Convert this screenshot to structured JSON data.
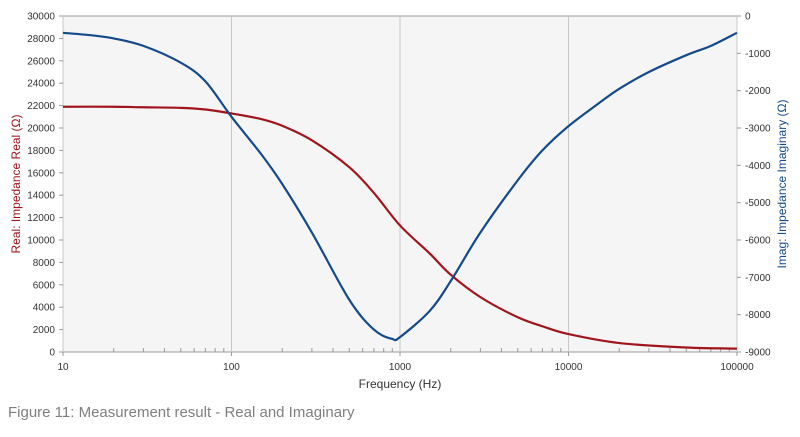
{
  "caption": "Figure 11: Measurement result - Real and Imaginary",
  "chart_data": {
    "type": "line",
    "xlabel": "Frequency (Hz)",
    "xscale": "log",
    "xlim": [
      10,
      100000
    ],
    "x_ticks": [
      "10",
      "100",
      "1000",
      "10000",
      "100000"
    ],
    "y_left": {
      "label": "Real: Impedance Real (Ω)",
      "lim": [
        0,
        30000
      ],
      "ticks": [
        "0",
        "2000",
        "4000",
        "6000",
        "8000",
        "10000",
        "12000",
        "14000",
        "16000",
        "18000",
        "20000",
        "22000",
        "24000",
        "26000",
        "28000",
        "30000"
      ],
      "color": "#a0151c"
    },
    "y_right": {
      "label": "Imag: Impedance Imaginary (Ω)",
      "lim": [
        -9000,
        0
      ],
      "ticks": [
        "-9000",
        "-8000",
        "-7000",
        "-6000",
        "-5000",
        "-4000",
        "-3000",
        "-2000",
        "-1000",
        "0"
      ],
      "color": "#154a8a"
    },
    "grid": true,
    "series": [
      {
        "name": "Real",
        "axis": "left",
        "color": "#a0151c",
        "x": [
          10,
          20,
          30,
          50,
          70,
          100,
          150,
          200,
          300,
          500,
          700,
          1000,
          1500,
          2000,
          3000,
          5000,
          7000,
          10000,
          20000,
          50000,
          100000
        ],
        "y": [
          21900,
          21900,
          21850,
          21800,
          21650,
          21300,
          20800,
          20200,
          18900,
          16500,
          14200,
          11300,
          8800,
          6900,
          4900,
          3100,
          2300,
          1600,
          800,
          400,
          300
        ]
      },
      {
        "name": "Imag",
        "axis": "right",
        "color": "#154a8a",
        "x": [
          10,
          15,
          20,
          30,
          50,
          70,
          100,
          150,
          200,
          300,
          500,
          700,
          900,
          1000,
          1500,
          2000,
          3000,
          5000,
          7000,
          10000,
          15000,
          20000,
          30000,
          50000,
          70000,
          100000
        ],
        "y": [
          -450,
          -520,
          -600,
          -800,
          -1250,
          -1750,
          -2700,
          -3700,
          -4500,
          -5800,
          -7600,
          -8400,
          -8650,
          -8600,
          -7900,
          -7100,
          -5800,
          -4400,
          -3600,
          -2950,
          -2350,
          -1950,
          -1500,
          -1050,
          -800,
          -450
        ]
      }
    ]
  }
}
